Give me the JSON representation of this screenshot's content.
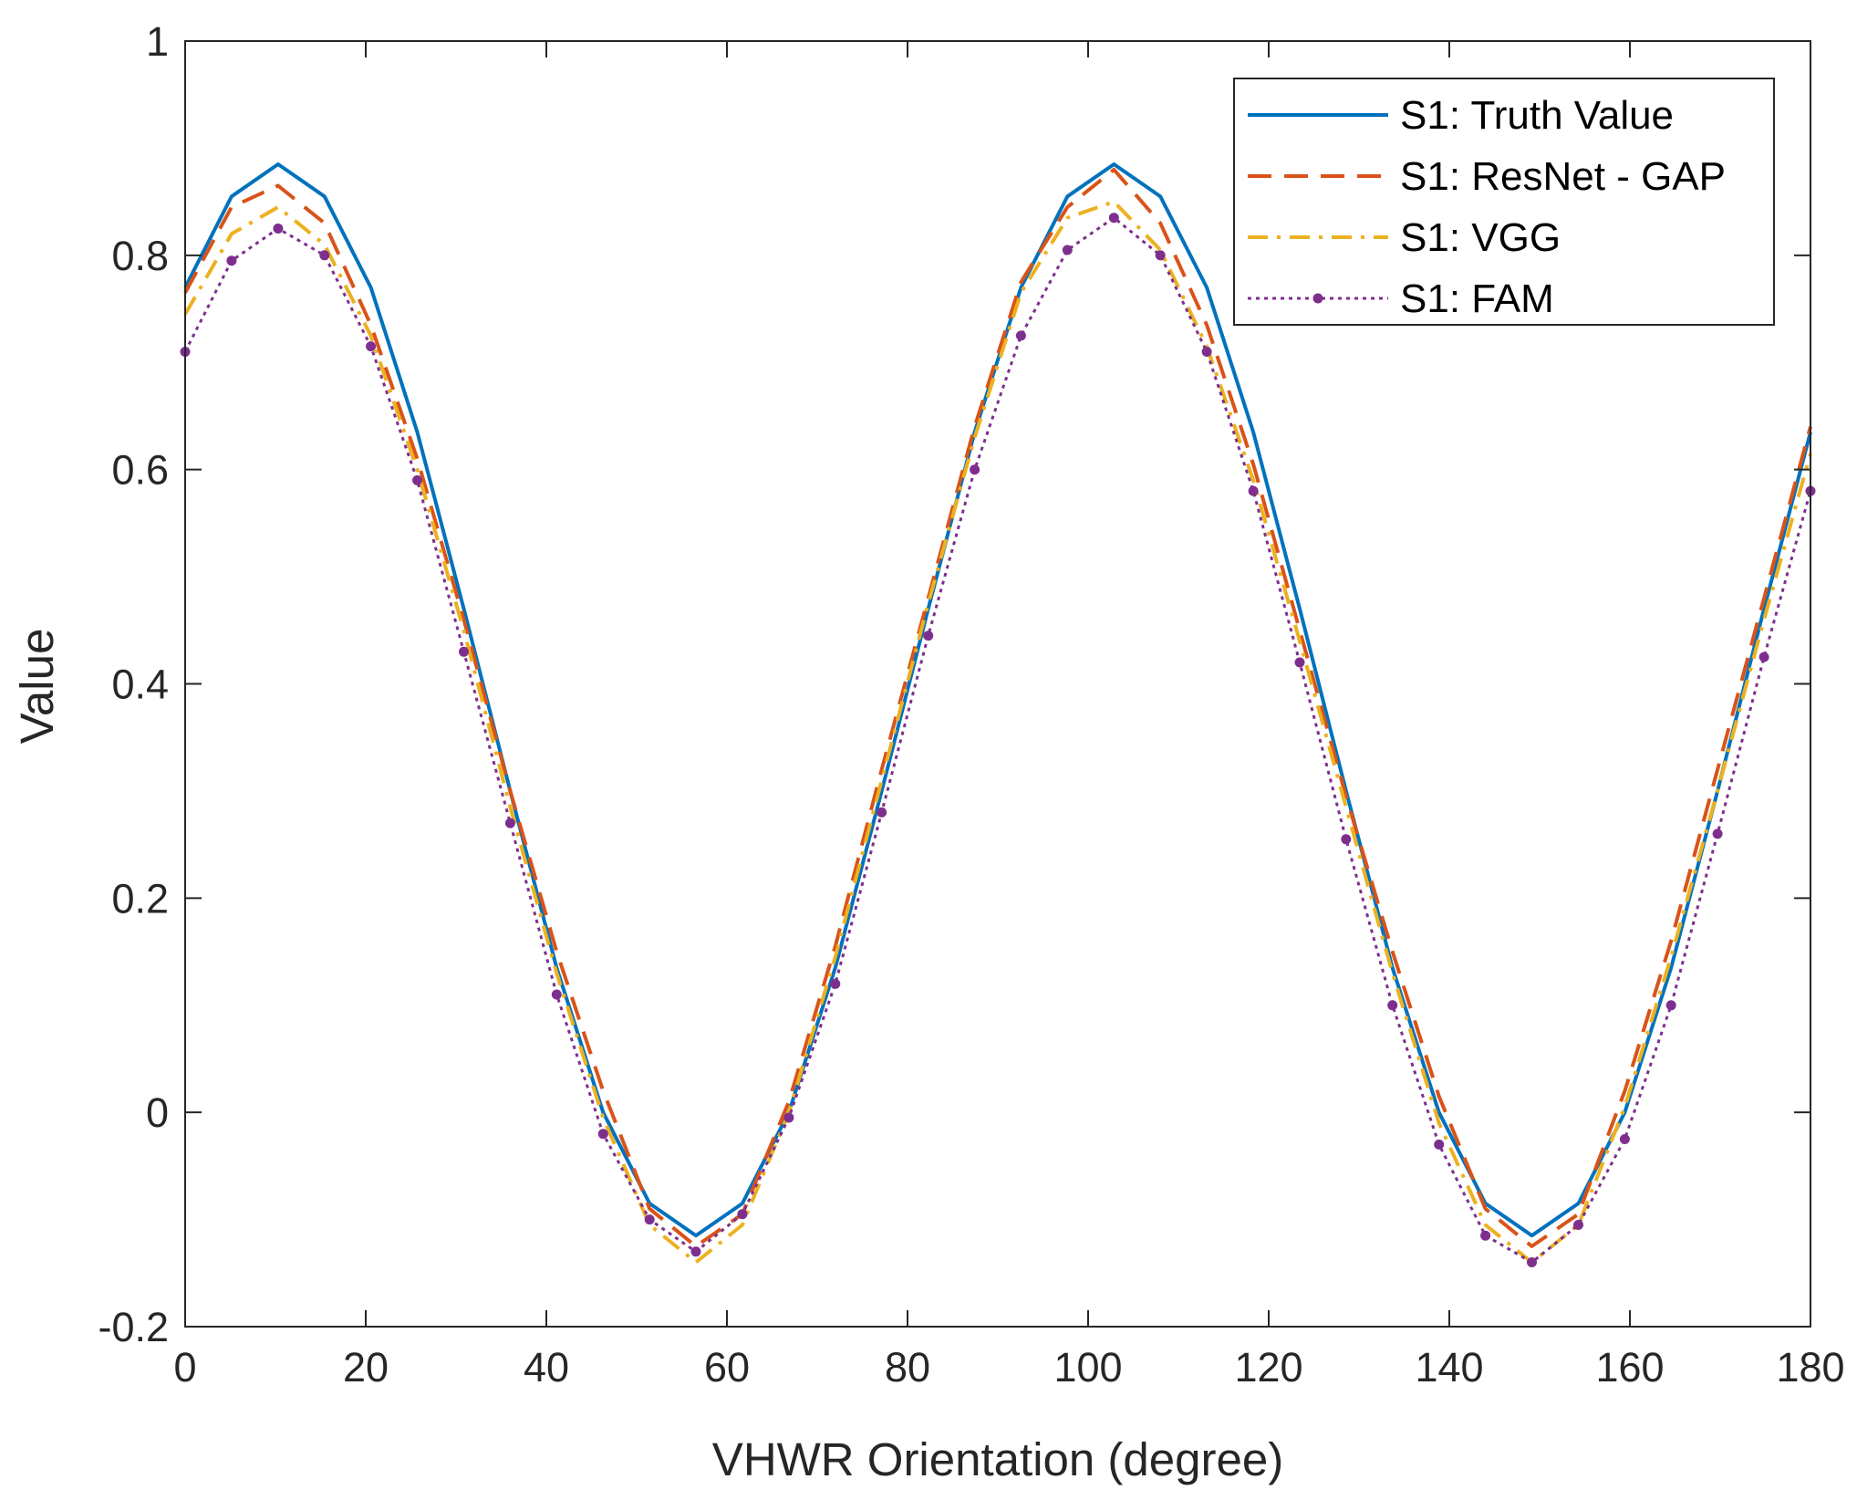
{
  "chart_data": {
    "type": "line",
    "title": "",
    "xlabel": "VHWR Orientation (degree)",
    "ylabel": "Value",
    "xlim": [
      0,
      180
    ],
    "ylim": [
      -0.2,
      1
    ],
    "xticks": [
      0,
      20,
      40,
      60,
      80,
      100,
      120,
      140,
      160,
      180
    ],
    "yticks": [
      -0.2,
      0,
      0.2,
      0.4,
      0.6,
      0.8,
      1
    ],
    "ytick_labels": [
      "-0.2",
      "0",
      "0.2",
      "0.4",
      "0.6",
      "0.8",
      "1"
    ],
    "grid": false,
    "legend_position": "top-right",
    "x": [
      0,
      5.14,
      10.29,
      15.43,
      20.57,
      25.71,
      30.86,
      36,
      41.14,
      46.29,
      51.43,
      56.57,
      61.71,
      66.86,
      72,
      77.14,
      82.29,
      87.43,
      92.57,
      97.71,
      102.86,
      108,
      113.14,
      118.29,
      123.43,
      128.57,
      133.71,
      138.86,
      144,
      149.14,
      154.29,
      159.43,
      164.57,
      169.71,
      174.86,
      180
    ],
    "series": [
      {
        "name": "S1: Truth Value",
        "color": "#0072BD",
        "style": "solid",
        "values": [
          0.77,
          0.855,
          0.885,
          0.855,
          0.77,
          0.635,
          0.47,
          0.3,
          0.135,
          0.0,
          -0.085,
          -0.115,
          -0.085,
          0.0,
          0.135,
          0.3,
          0.47,
          0.635,
          0.77,
          0.855,
          0.885,
          0.855,
          0.77,
          0.635,
          0.47,
          0.3,
          0.135,
          0.0,
          -0.085,
          -0.115,
          -0.085,
          0.0,
          0.135,
          0.3,
          0.47,
          0.635
        ]
      },
      {
        "name": "S1: ResNet - GAP",
        "color": "#D95319",
        "style": "dashed",
        "values": [
          0.765,
          0.845,
          0.865,
          0.83,
          0.735,
          0.61,
          0.46,
          0.3,
          0.15,
          0.02,
          -0.09,
          -0.125,
          -0.095,
          0.01,
          0.155,
          0.32,
          0.48,
          0.64,
          0.775,
          0.845,
          0.88,
          0.83,
          0.735,
          0.605,
          0.45,
          0.295,
          0.15,
          0.015,
          -0.09,
          -0.125,
          -0.095,
          0.02,
          0.16,
          0.32,
          0.48,
          0.64
        ]
      },
      {
        "name": "S1: VGG",
        "color": "#EDB120",
        "style": "dashdot",
        "values": [
          0.745,
          0.82,
          0.845,
          0.81,
          0.725,
          0.6,
          0.45,
          0.285,
          0.13,
          -0.005,
          -0.105,
          -0.14,
          -0.105,
          0.0,
          0.145,
          0.31,
          0.475,
          0.63,
          0.765,
          0.835,
          0.85,
          0.805,
          0.715,
          0.59,
          0.44,
          0.285,
          0.13,
          -0.01,
          -0.105,
          -0.14,
          -0.105,
          0.005,
          0.145,
          0.3,
          0.46,
          0.615
        ]
      },
      {
        "name": "S1: FAM",
        "color": "#7E2F8E",
        "style": "dotted",
        "values": [
          0.71,
          0.795,
          0.825,
          0.8,
          0.715,
          0.59,
          0.43,
          0.27,
          0.11,
          -0.02,
          -0.1,
          -0.13,
          -0.095,
          -0.005,
          0.12,
          0.28,
          0.445,
          0.6,
          0.725,
          0.805,
          0.835,
          0.8,
          0.71,
          0.58,
          0.42,
          0.255,
          0.1,
          -0.03,
          -0.115,
          -0.14,
          -0.105,
          -0.025,
          0.1,
          0.26,
          0.425,
          0.58
        ]
      }
    ]
  }
}
